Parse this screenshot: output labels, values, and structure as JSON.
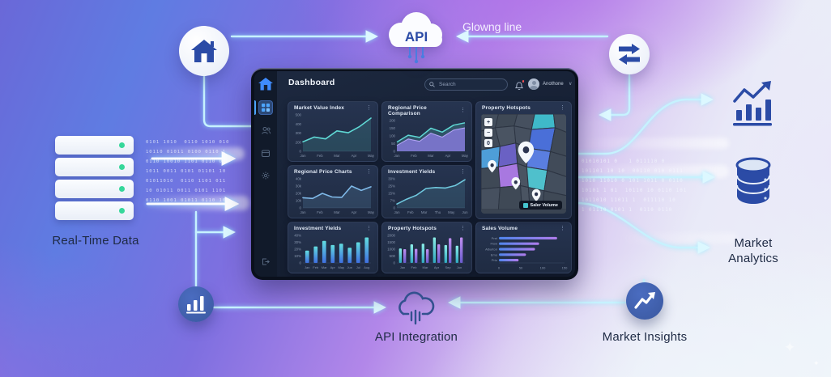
{
  "scene": {
    "labels": {
      "glowing_line": "Glowng line",
      "real_time_data": "Real-Time Data",
      "api_integration": "API Integration",
      "market_insights": "Market Insights",
      "market_analytics_line1": "Market",
      "market_analytics_line2": "Analytics",
      "api_cloud": "API"
    },
    "binary_left": [
      "0101 1010  0110 1010 010",
      "10110 01011 0100 0110 1",
      "0110 10010 1101 0110 01",
      "1011 0011 0101 01101 10",
      "01011010  0110 1101 011",
      "10 01011 0011 0101 1101",
      "0110 1001 01011 0110 10"
    ],
    "binary_right": [
      "01010101 0   1 011110 0",
      "101101 10 10  00110 010 0111",
      "1010 11010 0 101 1011 0 0110",
      "10101 1 01  10110 10 0110 101",
      "1011010 11011 1  011110 10",
      "1 01110 0101 1  0110 0110"
    ]
  },
  "dashboard": {
    "title": "Dashboard",
    "search": {
      "placeholder": "Search"
    },
    "user": {
      "name": "Anothone",
      "chevron": "∨"
    },
    "map": {
      "legend": "Saler Volume",
      "zoom_controls": [
        "+",
        "−",
        "0"
      ]
    },
    "cards": [
      {
        "id": "market-value-index",
        "title": "Market Value Index",
        "menu": "⋮",
        "chart": {
          "type": "line",
          "categories": [
            "Jan",
            "Feb",
            "Mar",
            "Apr",
            "May"
          ],
          "values": [
            130,
            195,
            170,
            280,
            255,
            340,
            455
          ],
          "yticks": [
            "500",
            "400",
            "300",
            "200",
            "0"
          ],
          "ymax": 500,
          "color": "#5fd8d4"
        }
      },
      {
        "id": "regional-price-comparison",
        "title": "Regional Price Comparison",
        "menu": "⋮",
        "chart": {
          "type": "area2",
          "categories": [
            "Jan",
            "Feb",
            "Mar",
            "Apr",
            "May"
          ],
          "series": [
            {
              "name": "upper",
              "values": [
                60,
                105,
                90,
                150,
                125,
                170,
                185
              ],
              "color": "#5fd8d4"
            },
            {
              "name": "lower",
              "values": [
                38,
                80,
                65,
                118,
                92,
                138,
                152
              ],
              "color": "#8a7ce0"
            }
          ],
          "yticks": [
            "200",
            "150",
            "100",
            "50",
            "0"
          ],
          "ymax": 200
        }
      },
      {
        "id": "property-hotspots-map",
        "title": "Property Hotspots",
        "menu": "⋮",
        "chart": {
          "type": "map"
        }
      },
      {
        "id": "regional-price-charts",
        "title": "Regional Price Charts",
        "menu": "⋮",
        "chart": {
          "type": "line",
          "categories": [
            "Jan",
            "Feb",
            "Mar",
            "Apr",
            "May"
          ],
          "values": [
            14,
            13,
            20,
            15,
            14.5,
            30,
            24,
            29
          ],
          "yticks": [
            "40k",
            "30k",
            "20k",
            "10k",
            "0"
          ],
          "ymax": 40,
          "color": "#7fb9e8"
        }
      },
      {
        "id": "investment-yields-line",
        "title": "Investment Yields",
        "menu": "⋮",
        "chart": {
          "type": "line",
          "categories": [
            "Jan",
            "Feb",
            "Mar",
            "Thu",
            "May",
            "Jun"
          ],
          "values": [
            4,
            9,
            13,
            20,
            21,
            20.5,
            23,
            29
          ],
          "yticks": [
            "30%",
            "25%",
            "15%",
            "7%",
            "0"
          ],
          "ymax": 30,
          "color": "#6fc8de"
        }
      },
      {
        "id": "investment-yields-bars",
        "title": "Investment Yields",
        "menu": "⋮",
        "chart": {
          "type": "bar",
          "categories": [
            "Jan",
            "Feb",
            "Mar",
            "Apr",
            "May",
            "Jun",
            "Jul",
            "Aug"
          ],
          "values": [
            18,
            24,
            32,
            26,
            28,
            22,
            30,
            37
          ],
          "yticks": [
            "40%",
            "30%",
            "20%",
            "10%",
            "0"
          ],
          "ymax": 40
        }
      },
      {
        "id": "property-hotspots-bars",
        "title": "Property Hotspots",
        "menu": "⋮",
        "chart": {
          "type": "groupedbar",
          "categories": [
            "Jan",
            "Feb",
            "Mar",
            "Apr",
            "Sep",
            "Jun"
          ],
          "series": [
            {
              "name": "teal",
              "values": [
                1050,
                1350,
                1400,
                1850,
                1300,
                1250
              ]
            },
            {
              "name": "purple",
              "values": [
                1000,
                1020,
                1000,
                1350,
                1800,
                1850
              ]
            }
          ],
          "yticks": [
            "2000",
            "1500",
            "1000",
            "500",
            "0"
          ],
          "ymax": 2000
        }
      },
      {
        "id": "sales-volume",
        "title": "Sales Volume",
        "menu": "⋮",
        "chart": {
          "type": "hbar",
          "categories": [
            "Pret",
            "Flow",
            "Alburton",
            "Emo",
            "Prio"
          ],
          "values": [
            142,
            98,
            88,
            66,
            48
          ],
          "xticks": [
            "0",
            "50",
            "100",
            "150"
          ],
          "xmax": 160
        }
      }
    ]
  }
}
